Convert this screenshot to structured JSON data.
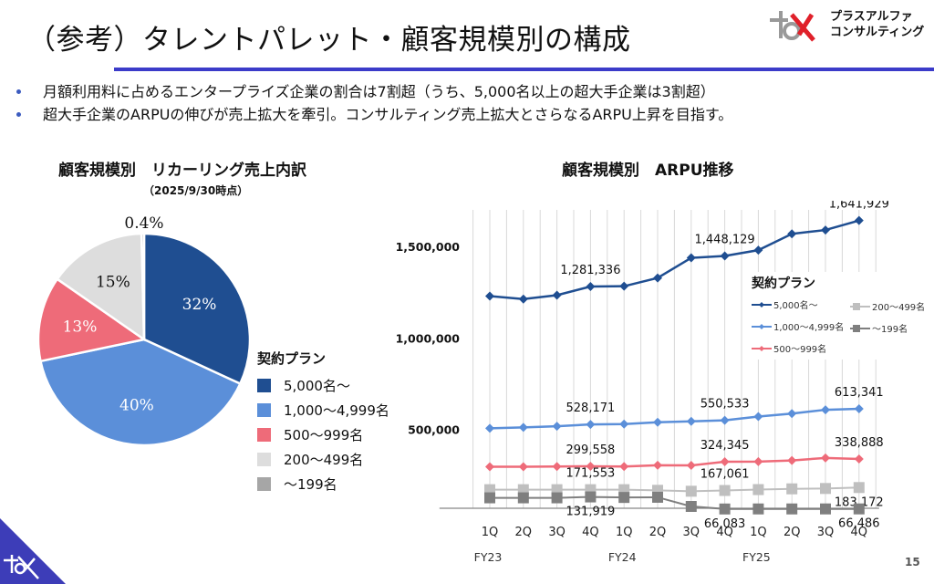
{
  "header": {
    "title": "（参考）タレントパレット・顧客規模別の構成",
    "logo_line1": "プラスアルファ",
    "logo_line2": "コンサルティング"
  },
  "bullets": [
    "月額利用料に占めるエンタープライズ企業の割合は7割超（うち、5,000名以上の超大手企業は3割超）",
    "超大手企業のARPUの伸びが売上拡大を牽引。コンサルティング売上拡大とさらなるARPU上昇を目指す。"
  ],
  "page_number": "15",
  "chart_data": [
    {
      "type": "pie",
      "title": "顧客規模別　リカーリング売上内訳",
      "subtitle": "（2025/9/30時点）",
      "legend_title": "契約プラン",
      "legend_position": "right",
      "slices": [
        {
          "label": "5,000名～",
          "value": 32,
          "display": "32%",
          "color": "#1f4e91"
        },
        {
          "label": "1,000～4,999名",
          "value": 40,
          "display": "40%",
          "color": "#5b8fd9"
        },
        {
          "label": "500～999名",
          "value": 13,
          "display": "13%",
          "color": "#ee6b79"
        },
        {
          "label": "200～499名",
          "value": 15,
          "display": "15%",
          "color": "#dddddd"
        },
        {
          "label": "～199名",
          "value": 0.4,
          "display": "0.4%",
          "color": "#a6a6a6"
        }
      ]
    },
    {
      "type": "line",
      "title": "顧客規模別　ARPU推移",
      "legend_title": "契約プラン",
      "legend_position": "inside-right",
      "categories": [
        "1Q",
        "2Q",
        "3Q",
        "4Q",
        "1Q",
        "2Q",
        "3Q",
        "4Q",
        "1Q",
        "2Q",
        "3Q",
        "4Q"
      ],
      "fiscal_years": [
        {
          "label": "FY23",
          "start": 0
        },
        {
          "label": "FY24",
          "start": 4
        },
        {
          "label": "FY25",
          "start": 8
        }
      ],
      "y_ticks": [
        {
          "value": 500000,
          "label": "500,000"
        },
        {
          "value": 1000000,
          "label": "1,000,000"
        },
        {
          "value": 1500000,
          "label": "1,500,000"
        }
      ],
      "ylim": [
        70000,
        1700000
      ],
      "grid": "vertical",
      "series": [
        {
          "name": "5,000名～",
          "color": "#1f4e91",
          "marker": "diamond",
          "values": [
            1229000,
            1213000,
            1234000,
            1281336,
            1283000,
            1328000,
            1438000,
            1448129,
            1480000,
            1569000,
            1590000,
            1641929
          ],
          "labels": [
            {
              "index": 3,
              "text": "1,281,336",
              "pos": "above"
            },
            {
              "index": 7,
              "text": "1,448,129",
              "pos": "above"
            },
            {
              "index": 11,
              "text": "1,641,929",
              "pos": "above"
            }
          ]
        },
        {
          "name": "1,000～4,999名",
          "color": "#5b8fd9",
          "marker": "diamond",
          "values": [
            507000,
            512000,
            518000,
            528171,
            530000,
            540000,
            545000,
            550533,
            571000,
            587000,
            608000,
            613341
          ],
          "labels": [
            {
              "index": 3,
              "text": "528,171",
              "pos": "above"
            },
            {
              "index": 7,
              "text": "550,533",
              "pos": "above"
            },
            {
              "index": 11,
              "text": "613,341",
              "pos": "above"
            }
          ]
        },
        {
          "name": "500～999名",
          "color": "#ee6b79",
          "marker": "diamond",
          "values": [
            297000,
            297000,
            298000,
            299558,
            298000,
            305000,
            304000,
            324345,
            325000,
            331000,
            345000,
            338888
          ],
          "labels": [
            {
              "index": 3,
              "text": "299,558",
              "pos": "above"
            },
            {
              "index": 7,
              "text": "324,345",
              "pos": "above"
            },
            {
              "index": 11,
              "text": "338,888",
              "pos": "above"
            }
          ]
        },
        {
          "name": "200～499名",
          "color": "#bfbfbf",
          "marker": "square",
          "values": [
            171553,
            171553,
            171553,
            171553,
            171553,
            168000,
            163000,
            167061,
            172000,
            176000,
            178000,
            183172
          ],
          "labels": [
            {
              "index": 3,
              "text": "171,553",
              "pos": "above"
            },
            {
              "index": 7,
              "text": "167,061",
              "pos": "above"
            },
            {
              "index": 11,
              "text": "183,172",
              "pos": "below"
            }
          ]
        },
        {
          "name": "～199名",
          "color": "#7f7f7f",
          "marker": "square",
          "values": [
            127000,
            127000,
            127000,
            131919,
            129000,
            130000,
            80000,
            66083,
            66300,
            66300,
            66400,
            66486
          ],
          "labels": [
            {
              "index": 3,
              "text": "131,919",
              "pos": "below"
            },
            {
              "index": 7,
              "text": "66,083",
              "pos": "below"
            },
            {
              "index": 11,
              "text": "66,486",
              "pos": "below"
            }
          ]
        }
      ]
    }
  ]
}
